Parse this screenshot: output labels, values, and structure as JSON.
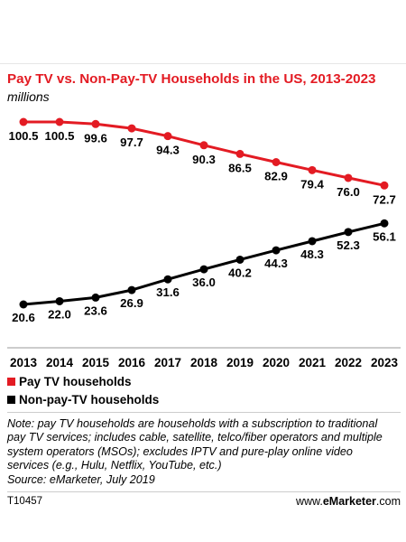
{
  "chart_data": {
    "type": "line",
    "title": "Pay TV vs. Non-Pay-TV Households in the US, 2013-2023",
    "subtitle": "millions",
    "categories": [
      "2013",
      "2014",
      "2015",
      "2016",
      "2017",
      "2018",
      "2019",
      "2020",
      "2021",
      "2022",
      "2023"
    ],
    "series": [
      {
        "name": "Pay TV households",
        "color": "#e31b23",
        "values": [
          100.5,
          100.5,
          99.6,
          97.7,
          94.3,
          90.3,
          86.5,
          82.9,
          79.4,
          76.0,
          72.7
        ],
        "labels": [
          "100.5",
          "100.5",
          "99.6",
          "97.7",
          "94.3",
          "90.3",
          "86.5",
          "82.9",
          "79.4",
          "76.0",
          "72.7"
        ]
      },
      {
        "name": "Non-pay-TV households",
        "color": "#000000",
        "values": [
          20.6,
          22.0,
          23.6,
          26.9,
          31.6,
          36.0,
          40.2,
          44.3,
          48.3,
          52.3,
          56.1
        ],
        "labels": [
          "20.6",
          "22.0",
          "23.6",
          "26.9",
          "31.6",
          "36.0",
          "40.2",
          "44.3",
          "48.3",
          "52.3",
          "56.1"
        ]
      }
    ],
    "legend_position": "bottom-left",
    "grid": false
  },
  "note": "Note: pay TV households are households with a subscription to traditional pay TV services; includes cable, satellite, telco/fiber operators and multiple system operators (MSOs); excludes IPTV and pure-play online video services (e.g., Hulu, Netflix, YouTube, etc.)",
  "source": "Source: eMarketer, July 2019",
  "chart_id": "T10457",
  "brand": {
    "prefix": "www.",
    "name": "eMarketer",
    "suffix": ".com"
  }
}
